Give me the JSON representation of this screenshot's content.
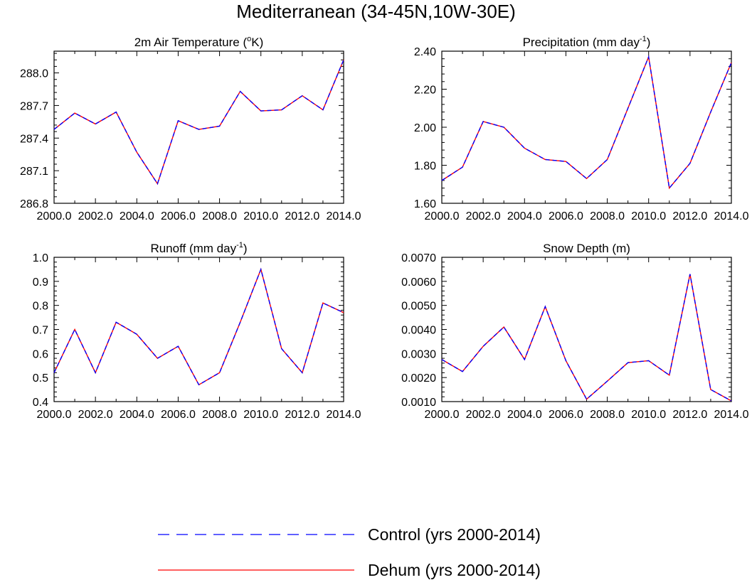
{
  "figure": {
    "title": "Mediterranean (34-45N,10W-30E)",
    "legend": [
      {
        "label": "Control (yrs 2000-2014)",
        "color": "#0000ff",
        "style": "dashed"
      },
      {
        "label": "Dehum (yrs 2000-2014)",
        "color": "#ff0000",
        "style": "solid"
      }
    ]
  },
  "chart_data": [
    {
      "type": "line",
      "title": "2m Air Temperature (",
      "title_sup": "o",
      "title_after": "K)",
      "x": [
        2000,
        2001,
        2002,
        2003,
        2004,
        2005,
        2006,
        2007,
        2008,
        2009,
        2010,
        2011,
        2012,
        2013,
        2014
      ],
      "xlim": [
        2000,
        2014
      ],
      "xticks": [
        2000,
        2002,
        2004,
        2006,
        2008,
        2010,
        2012,
        2014
      ],
      "xticklabels": [
        "2000.0",
        "2002.0",
        "2004.0",
        "2006.0",
        "2008.0",
        "2010.0",
        "2012.0",
        "2014.0"
      ],
      "ylim": [
        286.8,
        288.2
      ],
      "yticks": [
        286.8,
        287.1,
        287.4,
        287.7,
        288.0
      ],
      "yticklabels": [
        "286.8",
        "287.1",
        "287.4",
        "287.7",
        "288.0"
      ],
      "series": [
        {
          "name": "Control (yrs 2000-2014)",
          "values": [
            287.48,
            287.63,
            287.53,
            287.64,
            287.27,
            286.98,
            287.56,
            287.48,
            287.51,
            287.83,
            287.65,
            287.66,
            287.79,
            287.66,
            288.12
          ]
        },
        {
          "name": "Dehum (yrs 2000-2014)",
          "values": [
            287.48,
            287.63,
            287.53,
            287.64,
            287.27,
            286.98,
            287.56,
            287.48,
            287.51,
            287.83,
            287.65,
            287.66,
            287.79,
            287.66,
            288.12
          ]
        }
      ]
    },
    {
      "type": "line",
      "title": "Precipitation (mm day",
      "title_sup": "-1",
      "title_after": ")",
      "x": [
        2000,
        2001,
        2002,
        2003,
        2004,
        2005,
        2006,
        2007,
        2008,
        2009,
        2010,
        2011,
        2012,
        2013,
        2014
      ],
      "xlim": [
        2000,
        2014
      ],
      "xticks": [
        2000,
        2002,
        2004,
        2006,
        2008,
        2010,
        2012,
        2014
      ],
      "xticklabels": [
        "2000.0",
        "2002.0",
        "2004.0",
        "2006.0",
        "2008.0",
        "2010.0",
        "2012.0",
        "2014.0"
      ],
      "ylim": [
        1.6,
        2.4
      ],
      "yticks": [
        1.6,
        1.8,
        2.0,
        2.2,
        2.4
      ],
      "yticklabels": [
        "1.60",
        "1.80",
        "2.00",
        "2.20",
        "2.40"
      ],
      "series": [
        {
          "name": "Control (yrs 2000-2014)",
          "values": [
            1.72,
            1.79,
            2.03,
            2.0,
            1.89,
            1.83,
            1.82,
            1.73,
            1.83,
            2.1,
            2.37,
            1.68,
            1.81,
            2.08,
            2.34
          ]
        },
        {
          "name": "Dehum (yrs 2000-2014)",
          "values": [
            1.72,
            1.79,
            2.03,
            2.0,
            1.89,
            1.83,
            1.82,
            1.73,
            1.83,
            2.1,
            2.37,
            1.68,
            1.81,
            2.08,
            2.34
          ]
        }
      ]
    },
    {
      "type": "line",
      "title": "Runoff (mm day",
      "title_sup": "-1",
      "title_after": ")",
      "x": [
        2000,
        2001,
        2002,
        2003,
        2004,
        2005,
        2006,
        2007,
        2008,
        2009,
        2010,
        2011,
        2012,
        2013,
        2014
      ],
      "xlim": [
        2000,
        2014
      ],
      "xticks": [
        2000,
        2002,
        2004,
        2006,
        2008,
        2010,
        2012,
        2014
      ],
      "xticklabels": [
        "2000.0",
        "2002.0",
        "2004.0",
        "2006.0",
        "2008.0",
        "2010.0",
        "2012.0",
        "2014.0"
      ],
      "ylim": [
        0.4,
        1.0
      ],
      "yticks": [
        0.4,
        0.5,
        0.6,
        0.7,
        0.8,
        0.9,
        1.0
      ],
      "yticklabels": [
        "0.4",
        "0.5",
        "0.6",
        "0.7",
        "0.8",
        "0.9",
        "1.0"
      ],
      "series": [
        {
          "name": "Control (yrs 2000-2014)",
          "values": [
            0.52,
            0.7,
            0.52,
            0.73,
            0.68,
            0.58,
            0.63,
            0.47,
            0.52,
            0.73,
            0.95,
            0.62,
            0.52,
            0.81,
            0.77
          ]
        },
        {
          "name": "Dehum (yrs 2000-2014)",
          "values": [
            0.52,
            0.7,
            0.52,
            0.73,
            0.68,
            0.58,
            0.63,
            0.47,
            0.52,
            0.73,
            0.95,
            0.62,
            0.52,
            0.81,
            0.77
          ]
        }
      ]
    },
    {
      "type": "line",
      "title": "Snow Depth (m)",
      "title_sup": "",
      "title_after": "",
      "x": [
        2000,
        2001,
        2002,
        2003,
        2004,
        2005,
        2006,
        2007,
        2008,
        2009,
        2010,
        2011,
        2012,
        2013,
        2014
      ],
      "xlim": [
        2000,
        2014
      ],
      "xticks": [
        2000,
        2002,
        2004,
        2006,
        2008,
        2010,
        2012,
        2014
      ],
      "xticklabels": [
        "2000.0",
        "2002.0",
        "2004.0",
        "2006.0",
        "2008.0",
        "2010.0",
        "2012.0",
        "2014.0"
      ],
      "ylim": [
        0.001,
        0.007
      ],
      "yticks": [
        0.001,
        0.002,
        0.003,
        0.004,
        0.005,
        0.006,
        0.007
      ],
      "yticklabels": [
        "0.0010",
        "0.0020",
        "0.0030",
        "0.0040",
        "0.0050",
        "0.0060",
        "0.0070"
      ],
      "series": [
        {
          "name": "Control (yrs 2000-2014)",
          "values": [
            0.00275,
            0.00225,
            0.0033,
            0.0041,
            0.00275,
            0.00495,
            0.0027,
            0.0011,
            0.00185,
            0.00262,
            0.0027,
            0.0021,
            0.0063,
            0.0015,
            0.00103
          ]
        },
        {
          "name": "Dehum (yrs 2000-2014)",
          "values": [
            0.00275,
            0.00225,
            0.0033,
            0.0041,
            0.00275,
            0.00495,
            0.0027,
            0.0011,
            0.00185,
            0.00262,
            0.0027,
            0.0021,
            0.0063,
            0.0015,
            0.00103
          ]
        }
      ]
    }
  ]
}
